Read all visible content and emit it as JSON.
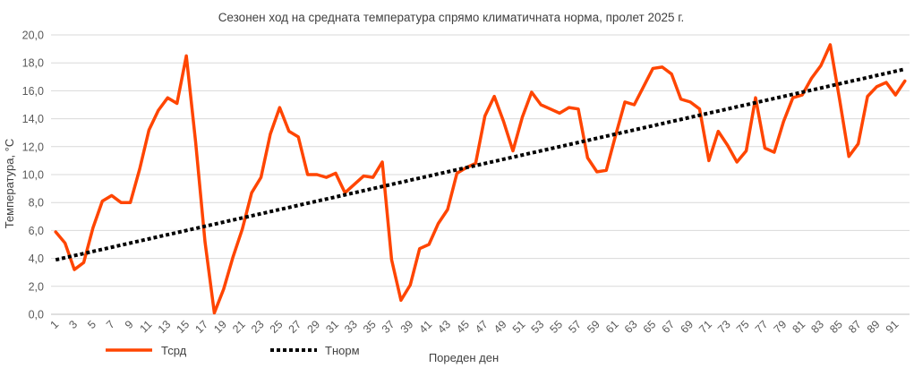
{
  "chart_data": {
    "type": "line",
    "title": "Сезонен ход на средната температура спрямо климатичната норма, пролет 2025 г.",
    "xlabel": "Пореден ден",
    "ylabel": "Температура, °C",
    "ylim": [
      0,
      20
    ],
    "yticks": [
      "0,0",
      "2,0",
      "4,0",
      "6,0",
      "8,0",
      "10,0",
      "12,0",
      "14,0",
      "16,0",
      "18,0",
      "20,0"
    ],
    "xticks": [
      "1",
      "3",
      "5",
      "7",
      "9",
      "11",
      "13",
      "15",
      "17",
      "19",
      "21",
      "23",
      "25",
      "27",
      "29",
      "31",
      "33",
      "35",
      "37",
      "39",
      "41",
      "43",
      "45",
      "47",
      "49",
      "51",
      "53",
      "55",
      "57",
      "59",
      "61",
      "63",
      "65",
      "67",
      "69",
      "71",
      "73",
      "75",
      "77",
      "79",
      "81",
      "83",
      "85",
      "87",
      "89",
      "91"
    ],
    "x": [
      1,
      2,
      3,
      4,
      5,
      6,
      7,
      8,
      9,
      10,
      11,
      12,
      13,
      14,
      15,
      16,
      17,
      18,
      19,
      20,
      21,
      22,
      23,
      24,
      25,
      26,
      27,
      28,
      29,
      30,
      31,
      32,
      33,
      34,
      35,
      36,
      37,
      38,
      39,
      40,
      41,
      42,
      43,
      44,
      45,
      46,
      47,
      48,
      49,
      50,
      51,
      52,
      53,
      54,
      55,
      56,
      57,
      58,
      59,
      60,
      61,
      62,
      63,
      64,
      65,
      66,
      67,
      68,
      69,
      70,
      71,
      72,
      73,
      74,
      75,
      76,
      77,
      78,
      79,
      80,
      81,
      82,
      83,
      84,
      85,
      86,
      87,
      88,
      89,
      90,
      91,
      92
    ],
    "grid": true,
    "legend_position": "bottom-left",
    "series": [
      {
        "name": "Тсрд",
        "color": "#ff4500",
        "style": "solid",
        "values": [
          5.9,
          5.1,
          3.2,
          3.7,
          6.2,
          8.1,
          8.5,
          8.0,
          8.0,
          10.4,
          13.2,
          14.6,
          15.5,
          15.1,
          18.5,
          12.3,
          5.2,
          0.1,
          1.8,
          4.1,
          6.1,
          8.7,
          9.8,
          12.9,
          14.8,
          13.1,
          12.7,
          10.0,
          10.0,
          9.8,
          10.1,
          8.7,
          9.3,
          9.9,
          9.8,
          10.9,
          3.9,
          1.0,
          2.1,
          4.7,
          5.0,
          6.5,
          7.5,
          10.1,
          10.5,
          10.8,
          14.2,
          15.6,
          13.8,
          11.7,
          14.1,
          15.9,
          15.0,
          14.7,
          14.4,
          14.8,
          14.7,
          11.2,
          10.2,
          10.3,
          12.8,
          15.2,
          15.0,
          16.3,
          17.6,
          17.7,
          17.2,
          15.4,
          15.2,
          14.7,
          11.0,
          13.1,
          12.1,
          10.9,
          11.7,
          15.5,
          11.9,
          11.6,
          13.8,
          15.5,
          15.7,
          16.9,
          17.8,
          19.3,
          15.4,
          11.3,
          12.2,
          15.6,
          16.3,
          16.6,
          15.7,
          16.7
        ]
      },
      {
        "name": "Тнорм",
        "color": "#000000",
        "style": "dotted",
        "values": [
          3.9,
          4.05,
          4.2,
          4.35,
          4.5,
          4.65,
          4.8,
          4.95,
          5.1,
          5.25,
          5.4,
          5.55,
          5.7,
          5.85,
          6.0,
          6.15,
          6.3,
          6.45,
          6.6,
          6.75,
          6.9,
          7.05,
          7.2,
          7.35,
          7.5,
          7.65,
          7.8,
          7.95,
          8.1,
          8.25,
          8.4,
          8.55,
          8.7,
          8.85,
          9.0,
          9.15,
          9.3,
          9.45,
          9.6,
          9.75,
          9.9,
          10.05,
          10.2,
          10.35,
          10.5,
          10.65,
          10.8,
          10.95,
          11.1,
          11.25,
          11.4,
          11.55,
          11.7,
          11.85,
          12.0,
          12.15,
          12.3,
          12.45,
          12.6,
          12.75,
          12.9,
          13.05,
          13.2,
          13.35,
          13.5,
          13.65,
          13.8,
          13.95,
          14.1,
          14.25,
          14.4,
          14.55,
          14.7,
          14.85,
          15.0,
          15.15,
          15.3,
          15.45,
          15.6,
          15.75,
          15.9,
          16.05,
          16.2,
          16.35,
          16.5,
          16.65,
          16.8,
          16.95,
          17.1,
          17.25,
          17.4,
          17.55
        ]
      }
    ]
  }
}
